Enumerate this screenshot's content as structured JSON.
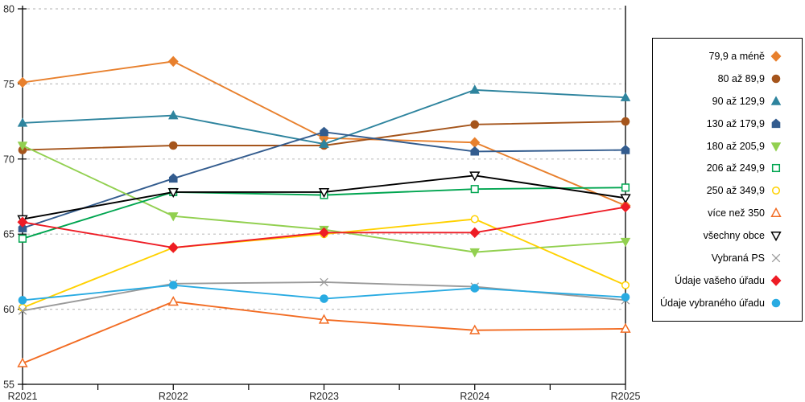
{
  "chart_data": {
    "type": "line",
    "title": "",
    "xlabel": "",
    "ylabel": "",
    "x_categories": [
      "R2021",
      "R2022",
      "R2023",
      "R2024",
      "R2025"
    ],
    "ylim": [
      55,
      80
    ],
    "yticks": [
      55,
      60,
      65,
      70,
      75,
      80
    ],
    "grid": "horizontal-dashed",
    "grid_color": "#c0c0c0",
    "axis_color": "#000000",
    "legend_position": "right",
    "series": [
      {
        "name": "79,9 a méně",
        "color": "#E8802D",
        "marker": "diamond",
        "fill": "filled",
        "values": [
          75.1,
          76.5,
          71.4,
          71.1,
          66.9
        ]
      },
      {
        "name": "80 až 89,9",
        "color": "#A5551C",
        "marker": "circle",
        "fill": "filled",
        "values": [
          70.6,
          70.9,
          70.9,
          72.3,
          72.5
        ]
      },
      {
        "name": "90 až 129,9",
        "color": "#2E849E",
        "marker": "triangle-up",
        "fill": "filled",
        "values": [
          72.4,
          72.9,
          71.0,
          74.6,
          74.1
        ]
      },
      {
        "name": "130 až 179,9",
        "color": "#335C8E",
        "marker": "pentagon",
        "fill": "filled",
        "values": [
          65.4,
          68.7,
          71.8,
          70.5,
          70.6
        ]
      },
      {
        "name": "180 až 205,9",
        "color": "#92D050",
        "marker": "triangle-down",
        "fill": "filled",
        "values": [
          70.9,
          66.2,
          65.3,
          63.8,
          64.5
        ]
      },
      {
        "name": "206 až 249,9",
        "color": "#00A550",
        "marker": "square",
        "fill": "open",
        "values": [
          64.7,
          67.8,
          67.6,
          68.0,
          68.1
        ]
      },
      {
        "name": "250 až 349,9",
        "color": "#FFD100",
        "marker": "circle",
        "fill": "open",
        "values": [
          60.1,
          64.1,
          65.0,
          66.0,
          61.6
        ]
      },
      {
        "name": "více než 350",
        "color": "#F26C23",
        "marker": "triangle-up",
        "fill": "open",
        "values": [
          56.4,
          60.5,
          59.3,
          58.6,
          58.7
        ]
      },
      {
        "name": "všechny obce",
        "color": "#000000",
        "marker": "triangle-down",
        "fill": "open",
        "values": [
          66.0,
          67.8,
          67.8,
          68.9,
          67.4
        ]
      },
      {
        "name": "Vybraná PS",
        "color": "#9A9A9A",
        "marker": "x",
        "fill": "open",
        "values": [
          59.9,
          61.7,
          61.8,
          61.5,
          60.6
        ]
      },
      {
        "name": "Údaje vašeho úřadu",
        "color": "#EE1C25",
        "marker": "diamond",
        "fill": "filled",
        "values": [
          65.8,
          64.1,
          65.1,
          65.1,
          66.8
        ]
      },
      {
        "name": "Údaje vybraného úřadu",
        "color": "#29ABE2",
        "marker": "circle",
        "fill": "filled",
        "values": [
          60.6,
          61.6,
          60.7,
          61.4,
          60.8
        ]
      }
    ]
  }
}
